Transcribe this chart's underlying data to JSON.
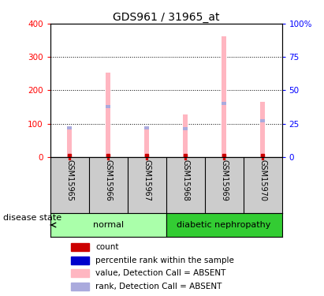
{
  "title": "GDS961 / 31965_at",
  "samples": [
    "GSM15965",
    "GSM15966",
    "GSM15967",
    "GSM15968",
    "GSM15969",
    "GSM15970"
  ],
  "value_absent": [
    90,
    252,
    93,
    127,
    362,
    165
  ],
  "rank_absent_pct": [
    22,
    38,
    22,
    21,
    40,
    27
  ],
  "ylim_left": [
    0,
    400
  ],
  "ylim_right": [
    0,
    100
  ],
  "yticks_left": [
    0,
    100,
    200,
    300,
    400
  ],
  "ytick_labels_left": [
    "0",
    "100",
    "200",
    "300",
    "400"
  ],
  "yticks_right": [
    0,
    25,
    50,
    75,
    100
  ],
  "ytick_labels_right": [
    "0",
    "25",
    "50",
    "75",
    "100%"
  ],
  "grid_values": [
    100,
    200,
    300
  ],
  "color_value_absent": "#FFB6C1",
  "color_rank_absent": "#AAAADD",
  "color_count": "#CC0000",
  "color_percentile": "#0000CC",
  "normal_color": "#AAFFAA",
  "dn_color": "#33CC33",
  "sample_box_color": "#CCCCCC",
  "disease_state_label": "disease state",
  "legend_items": [
    {
      "label": "count",
      "color": "#CC0000"
    },
    {
      "label": "percentile rank within the sample",
      "color": "#0000CC"
    },
    {
      "label": "value, Detection Call = ABSENT",
      "color": "#FFB6C1"
    },
    {
      "label": "rank, Detection Call = ABSENT",
      "color": "#AAAADD"
    }
  ],
  "title_fontsize": 10,
  "tick_fontsize": 7.5,
  "label_fontsize": 8
}
